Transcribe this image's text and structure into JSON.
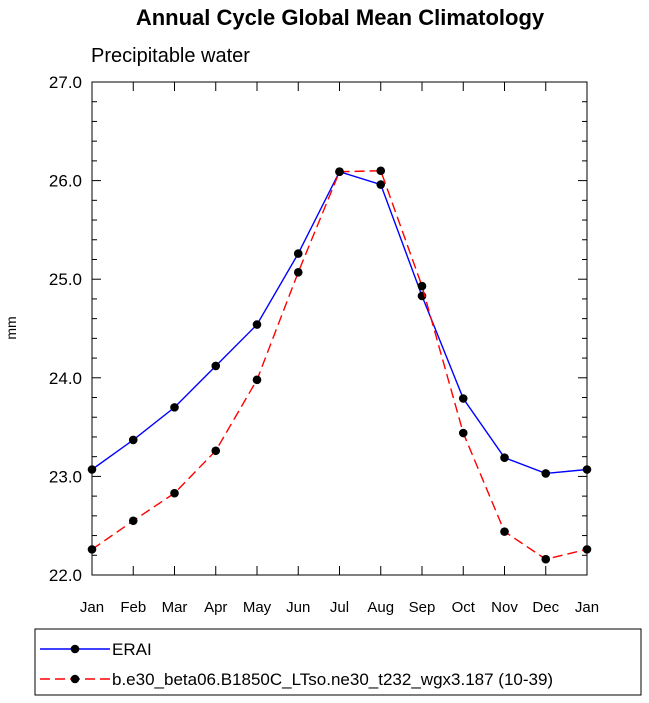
{
  "chart_data": {
    "type": "line",
    "title": "Annual Cycle Global Mean Climatology",
    "subtitle": "Precipitable water",
    "xlabel": "",
    "ylabel": "mm",
    "categories": [
      "Jan",
      "Feb",
      "Mar",
      "Apr",
      "May",
      "Jun",
      "Jul",
      "Aug",
      "Sep",
      "Oct",
      "Nov",
      "Dec",
      "Jan"
    ],
    "ylim": [
      22.0,
      27.0
    ],
    "yticks": [
      "22.0",
      "23.0",
      "24.0",
      "25.0",
      "26.0",
      "27.0"
    ],
    "grid": false,
    "legend_position": "bottom",
    "series": [
      {
        "name": "ERAI",
        "color": "#0000ff",
        "dash": "solid",
        "marker": "filled-circle",
        "values": [
          23.07,
          23.37,
          23.7,
          24.12,
          24.54,
          25.26,
          26.09,
          25.96,
          24.83,
          23.79,
          23.19,
          23.03,
          23.07
        ]
      },
      {
        "name": "b.e30_beta06.B1850C_LTso.ne30_t232_wgx3.187 (10-39)",
        "color": "#ff0000",
        "dash": "dashed",
        "marker": "filled-circle",
        "values": [
          22.26,
          22.55,
          22.83,
          23.26,
          23.98,
          25.07,
          26.09,
          26.1,
          24.93,
          23.44,
          22.44,
          22.16,
          22.26
        ]
      }
    ]
  }
}
